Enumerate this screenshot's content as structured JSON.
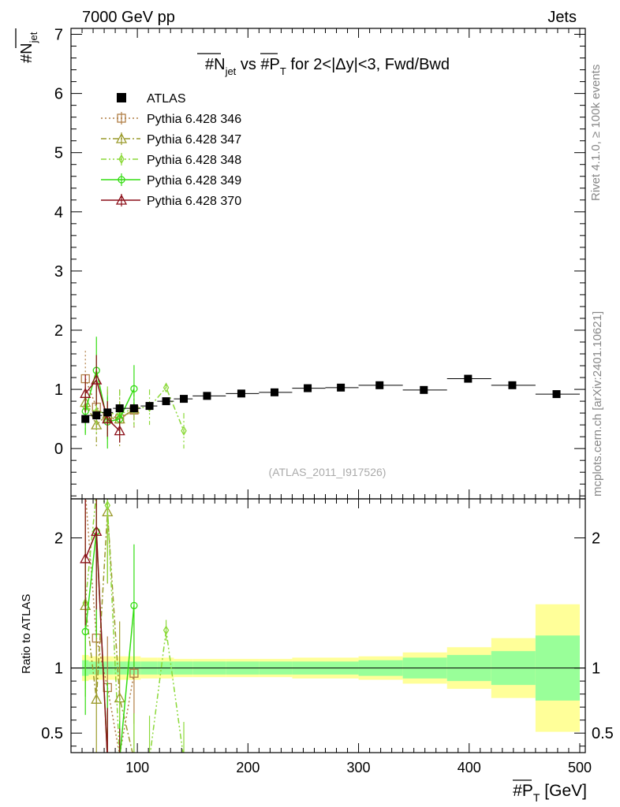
{
  "header": {
    "left": "7000 GeV pp",
    "right": "Jets"
  },
  "side_labels": {
    "rivet": "Rivet 4.1.0, ≥ 100k events",
    "mcplots": "mcplots.cern.ch [arXiv:2401.10621]"
  },
  "chart_data": {
    "type": "scatter",
    "title": "#N_jet vs #P_T for 2<|Δy|<3, Fwd/Bwd",
    "title_parts": {
      "a": "#N",
      "a_sub": "jet",
      "b": " vs #P",
      "b_sub": "T",
      "c": " for 2<|Δy|<3, Fwd/Bwd"
    },
    "watermark": "(ATLAS_2011_I917526)",
    "ylabel": {
      "main": "#N",
      "sub": "jet"
    },
    "xlabel": {
      "main": "#P",
      "sub": "T",
      "unit": " [GeV]"
    },
    "ratio_ylabel": "Ratio to ATLAS",
    "xlim": [
      40,
      505
    ],
    "ylim": [
      -0.85,
      7.1
    ],
    "ratio_ylim": [
      0.35,
      2.3
    ],
    "x_ticks": [
      "100",
      "200",
      "300",
      "400",
      "500"
    ],
    "y_ticks": [
      "0",
      "1",
      "2",
      "3",
      "4",
      "5",
      "6",
      "7"
    ],
    "ratio_ticks": [
      "0.5",
      "1",
      "2"
    ],
    "data": {
      "name": "ATLAS",
      "x": [
        53,
        63,
        73,
        84,
        97,
        111,
        126,
        142,
        163,
        194,
        224,
        254,
        284,
        319,
        359,
        399,
        439,
        479
      ],
      "y": [
        0.5,
        0.56,
        0.61,
        0.68,
        0.68,
        0.72,
        0.8,
        0.84,
        0.89,
        0.93,
        0.95,
        1.02,
        1.03,
        1.07,
        0.99,
        1.18,
        1.07,
        0.92
      ],
      "xlo": [
        50,
        56,
        68,
        78,
        90,
        103,
        118,
        133,
        150,
        180,
        210,
        240,
        270,
        300,
        340,
        380,
        420,
        460
      ],
      "xhi": [
        56,
        68,
        78,
        90,
        103,
        118,
        133,
        150,
        180,
        210,
        240,
        270,
        300,
        340,
        380,
        420,
        460,
        500
      ],
      "band_inner": [
        0.06,
        0.05,
        0.05,
        0.05,
        0.05,
        0.05,
        0.05,
        0.05,
        0.05,
        0.05,
        0.05,
        0.05,
        0.05,
        0.06,
        0.08,
        0.1,
        0.13,
        0.25
      ],
      "band_outer": [
        0.1,
        0.09,
        0.09,
        0.09,
        0.09,
        0.08,
        0.08,
        0.07,
        0.07,
        0.07,
        0.07,
        0.08,
        0.08,
        0.09,
        0.12,
        0.16,
        0.23,
        0.49
      ]
    },
    "series": [
      {
        "name": "Pythia 6.428 346",
        "color": "#b07e45",
        "marker": "square",
        "dash": "2,3",
        "x": [
          53,
          63,
          73,
          84,
          97
        ],
        "y": [
          1.18,
          0.7,
          0.52,
          0.5,
          0.65
        ],
        "err": [
          0.47,
          0.35,
          0.3,
          0.25,
          0.33
        ],
        "ratio_y": [
          2.35,
          1.23,
          0.85,
          0.33,
          0.96
        ]
      },
      {
        "name": "Pythia 6.428 347",
        "color": "#9a9a2b",
        "marker": "triangle",
        "dash": "7,3,2,3",
        "x": [
          53,
          63,
          73,
          84,
          97
        ],
        "y": [
          0.78,
          0.4,
          0.58,
          0.5,
          0.67
        ],
        "err": [
          0.4,
          0.4,
          0.42,
          0.5,
          0.3
        ],
        "ratio_y": [
          1.48,
          0.76,
          2.2,
          0.77,
          0.3
        ]
      },
      {
        "name": "Pythia 6.428 348",
        "color": "#8cd93a",
        "marker": "diamond",
        "dash": "7,3,2,3,2,3",
        "x": [
          53,
          63,
          73,
          84,
          97,
          111,
          126,
          142
        ],
        "y": [
          0.7,
          0.62,
          0.6,
          0.58,
          0.68,
          0.7,
          1.03,
          0.3
        ],
        "err": [
          0.45,
          0.4,
          0.45,
          0.4,
          0.3,
          0.3,
          0.08,
          0.3
        ],
        "ratio_y": [
          1.5,
          2.35,
          2.25,
          0.3,
          0.3,
          0.3,
          1.29,
          0.3
        ]
      },
      {
        "name": "Pythia 6.428 349",
        "color": "#33dd11",
        "marker": "circle",
        "dash": "",
        "x": [
          53,
          63,
          73,
          84,
          97
        ],
        "y": [
          0.63,
          1.32,
          0.45,
          0.5,
          1.01
        ],
        "err": [
          0.4,
          0.57,
          0.45,
          0.25,
          0.4
        ],
        "ratio_y": [
          1.28,
          2.05,
          0.3,
          0.3,
          1.48
        ]
      },
      {
        "name": "Pythia 6.428 370",
        "color": "#8b0e18",
        "marker": "triangle",
        "dash": "",
        "x": [
          53,
          63,
          73,
          84
        ],
        "y": [
          0.93,
          1.16,
          0.5,
          0.3
        ],
        "err": [
          0.32,
          0.42,
          0.3,
          0.2
        ],
        "ratio_y": [
          1.84,
          2.05,
          0.3,
          0.3
        ]
      }
    ]
  }
}
